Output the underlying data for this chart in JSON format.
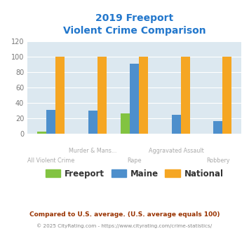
{
  "title_line1": "2019 Freeport",
  "title_line2": "Violent Crime Comparison",
  "title_color": "#2277cc",
  "categories_top": [
    "",
    "Murder & Mans...",
    "",
    "Aggravated Assault",
    ""
  ],
  "categories_bot": [
    "All Violent Crime",
    "",
    "Rape",
    "",
    "Robbery"
  ],
  "freeport_values": [
    3,
    0,
    27,
    0,
    0
  ],
  "maine_values": [
    31,
    30,
    91,
    25,
    17
  ],
  "national_values": [
    100,
    100,
    100,
    100,
    100
  ],
  "freeport_color": "#82c341",
  "maine_color": "#4d8fcc",
  "national_color": "#f5a623",
  "ylim": [
    0,
    120
  ],
  "yticks": [
    0,
    20,
    40,
    60,
    80,
    100,
    120
  ],
  "background_color": "#dce8f0",
  "legend_labels": [
    "Freeport",
    "Maine",
    "National"
  ],
  "legend_label_colors": [
    "#555555",
    "#555555",
    "#555555"
  ],
  "footnote1": "Compared to U.S. average. (U.S. average equals 100)",
  "footnote2": "© 2025 CityRating.com - https://www.cityrating.com/crime-statistics/",
  "footnote1_color": "#993300",
  "footnote2_color": "#888888",
  "url_color": "#4488cc",
  "xlabel_color": "#aaaaaa",
  "bar_width": 0.22
}
